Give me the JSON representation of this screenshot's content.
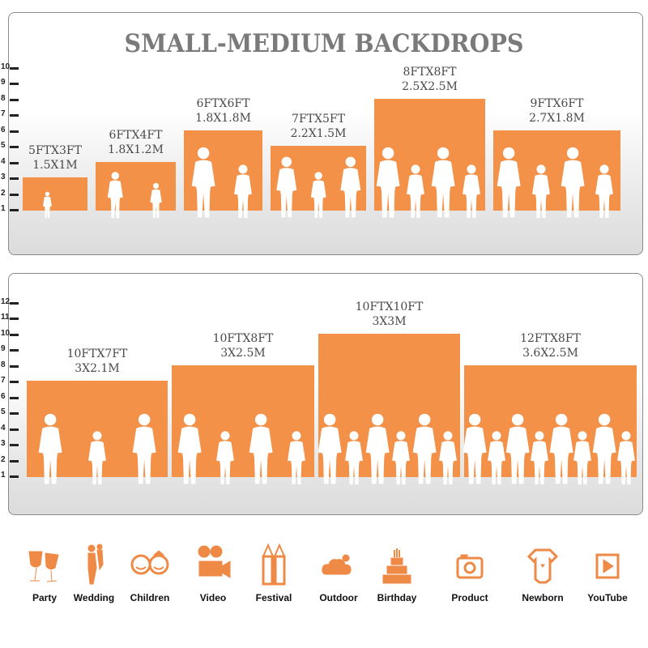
{
  "title": "SMALL-MEDIUM BACKDROPS",
  "colors": {
    "bar": "#f39149",
    "icon": "#ee8a45",
    "title": "#7a7a7a",
    "figure": "#ffffff"
  },
  "panels": [
    {
      "axis_ticks": [
        "1",
        "2",
        "3",
        "4",
        "5",
        "6",
        "7",
        "8",
        "9",
        "10"
      ],
      "bars": [
        {
          "size_ft": "5FTX3FT",
          "size_m": "1.5X1M",
          "width_ft": 5,
          "height_ft": 3,
          "figures": 1
        },
        {
          "size_ft": "6FTX4FT",
          "size_m": "1.8X1.2M",
          "width_ft": 6,
          "height_ft": 4,
          "figures": 2
        },
        {
          "size_ft": "6FTX6FT",
          "size_m": "1.8X1.8M",
          "width_ft": 6,
          "height_ft": 6,
          "figures": 2
        },
        {
          "size_ft": "7FTX5FT",
          "size_m": "2.2X1.5M",
          "width_ft": 7,
          "height_ft": 5,
          "figures": 3
        },
        {
          "size_ft": "8FTX8FT",
          "size_m": "2.5X2.5M",
          "width_ft": 8,
          "height_ft": 8,
          "figures": 4
        },
        {
          "size_ft": "9FTX6FT",
          "size_m": "2.7X1.8M",
          "width_ft": 9,
          "height_ft": 6,
          "figures": 4
        }
      ]
    },
    {
      "axis_ticks": [
        "1",
        "2",
        "3",
        "4",
        "5",
        "6",
        "7",
        "8",
        "9",
        "10",
        "11",
        "12"
      ],
      "bars": [
        {
          "size_ft": "10FTX7FT",
          "size_m": "3X2.1M",
          "width_ft": 10,
          "height_ft": 7,
          "figures": 3
        },
        {
          "size_ft": "10FTX8FT",
          "size_m": "3X2.5M",
          "width_ft": 10,
          "height_ft": 8,
          "figures": 4
        },
        {
          "size_ft": "10FTX10FT",
          "size_m": "3X3M",
          "width_ft": 10,
          "height_ft": 10,
          "figures": 6
        },
        {
          "size_ft": "12FTX8FT",
          "size_m": "3.6X2.5M",
          "width_ft": 12,
          "height_ft": 8,
          "figures": 8
        }
      ]
    }
  ],
  "uses": [
    {
      "label": "Party",
      "icon": "toast-glasses-icon"
    },
    {
      "label": "Wedding",
      "icon": "wedding-couple-icon"
    },
    {
      "label": "Children",
      "icon": "children-faces-icon"
    },
    {
      "label": "Video",
      "icon": "movie-camera-icon"
    },
    {
      "label": "Festival",
      "icon": "gift-box-icon"
    },
    {
      "label": "Outdoor",
      "icon": "cloud-icon"
    },
    {
      "label": "Birthday",
      "icon": "birthday-cake-icon"
    },
    {
      "label": "Product",
      "icon": "camera-icon"
    },
    {
      "label": "Newborn",
      "icon": "baby-onesie-icon"
    },
    {
      "label": "YouTube",
      "icon": "play-button-icon"
    }
  ]
}
